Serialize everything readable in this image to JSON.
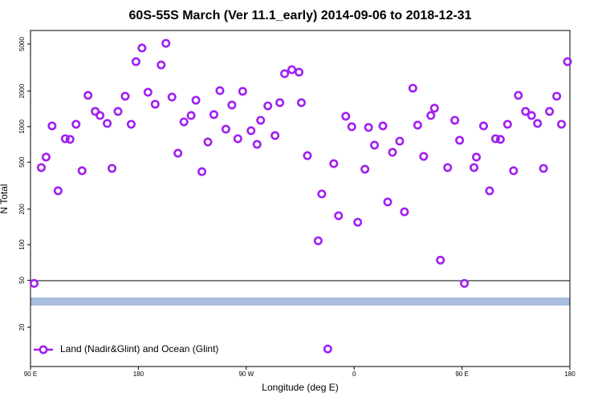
{
  "chart_data": {
    "type": "scatter",
    "title": "60S-55S March (Ver 11.1_early)   2014-09-06 to 2018-12-31",
    "x_label": "Longitude (deg E)",
    "y_label": "N Total",
    "log_y": true,
    "legend": "bottomleft",
    "xlim": [
      90,
      540
    ],
    "ylim": [
      9.3,
      6520
    ],
    "xticks": [
      {
        "value": 90,
        "label": "90 E"
      },
      {
        "value": 180,
        "label": "180"
      },
      {
        "value": 270,
        "label": "90 W"
      },
      {
        "value": 360,
        "label": "0"
      },
      {
        "value": 450,
        "label": "90 E"
      },
      {
        "value": 540,
        "label": "180"
      }
    ],
    "yticks": [
      20,
      50,
      100,
      200,
      500,
      1000,
      2000,
      5000
    ],
    "series": [
      {
        "name": "Land (Nadir&Glint) and Ocean (Glint)",
        "color": "#a020f0",
        "x": [
          93,
          99,
          103,
          108,
          113,
          119,
          123,
          128,
          133,
          138,
          144,
          148,
          154,
          158,
          163,
          169,
          174,
          178,
          183,
          188,
          194,
          199,
          203,
          208,
          213,
          218,
          224,
          228,
          233,
          238,
          243,
          248,
          253,
          258,
          263,
          267,
          274,
          279,
          282,
          288,
          294,
          298,
          302,
          308,
          314,
          316,
          321,
          330,
          333,
          338,
          343,
          347,
          353,
          358,
          363,
          369,
          372,
          377,
          384,
          388,
          392,
          398,
          402,
          409,
          413,
          418,
          424,
          427,
          432,
          438,
          444,
          448,
          452,
          460,
          462,
          468,
          473,
          478,
          482,
          488,
          493,
          497,
          503,
          508,
          513,
          518,
          523,
          529,
          533,
          538
        ],
        "values": [
          47,
          450,
          552,
          1014,
          286,
          790,
          780,
          1047,
          423,
          1840,
          1345,
          1242,
          1064,
          443,
          1345,
          1810,
          1047,
          3550,
          4630,
          1955,
          1548,
          3330,
          5080,
          1780,
          596,
          1097,
          1242,
          1674,
          416,
          742,
          1265,
          2017,
          952,
          1524,
          790,
          1990,
          923,
          708,
          1132,
          1500,
          840,
          1596,
          2806,
          3034,
          2892,
          1596,
          568,
          108,
          269,
          13.1,
          486,
          176,
          1224,
          998,
          155,
          436,
          984,
          697,
          1014,
          230,
          606,
          753,
          190,
          2116,
          1030,
          560,
          1242,
          1432,
          74,
          450,
          1132,
          766,
          47,
          450,
          552,
          1014,
          286,
          790,
          780,
          1047,
          423,
          1840,
          1345,
          1242,
          1064,
          443,
          1345,
          1810,
          1047,
          3550
        ]
      }
    ]
  }
}
